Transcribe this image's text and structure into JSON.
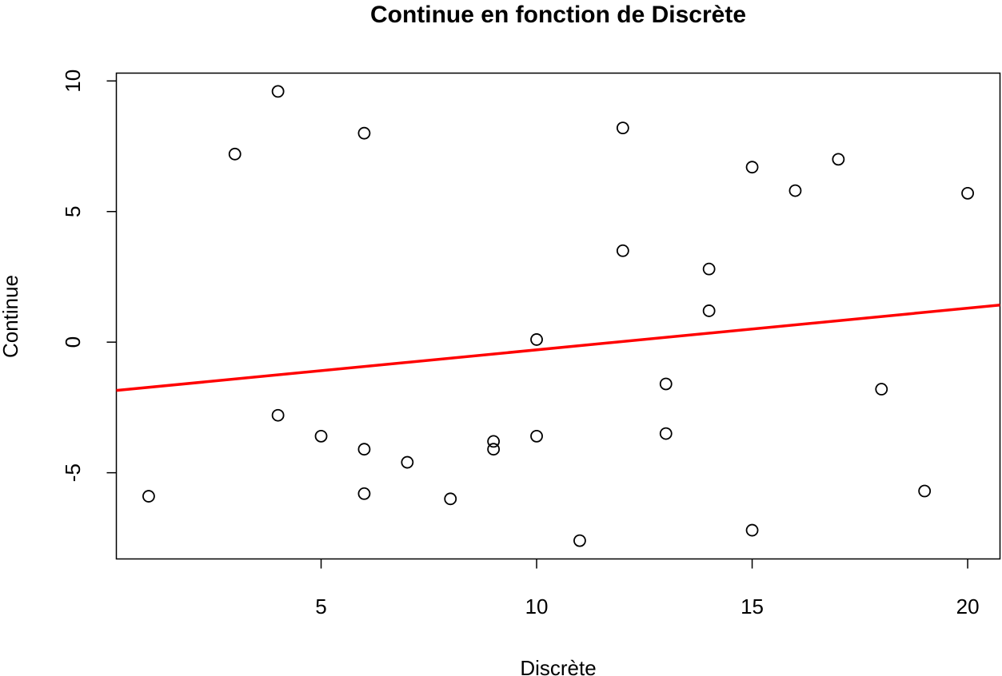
{
  "chart_data": {
    "type": "scatter",
    "title": "Continue en fonction de Discrète",
    "xlabel": "Discrète",
    "ylabel": "Continue",
    "xlim": [
      0.25,
      20.75
    ],
    "ylim": [
      -8.3,
      10.3
    ],
    "xticks": [
      5,
      10,
      15,
      20
    ],
    "yticks": [
      -5,
      0,
      5,
      10
    ],
    "grid": false,
    "colors": {
      "points": "#000000",
      "regression_line": "#ff0000"
    },
    "points": [
      {
        "x": 1,
        "y": -5.9
      },
      {
        "x": 3,
        "y": 7.2
      },
      {
        "x": 4,
        "y": 9.6
      },
      {
        "x": 4,
        "y": -2.8
      },
      {
        "x": 5,
        "y": -3.6
      },
      {
        "x": 6,
        "y": 8.0
      },
      {
        "x": 6,
        "y": -4.1
      },
      {
        "x": 6,
        "y": -5.8
      },
      {
        "x": 7,
        "y": -4.6
      },
      {
        "x": 8,
        "y": -6.0
      },
      {
        "x": 9,
        "y": -3.8
      },
      {
        "x": 9,
        "y": -4.1
      },
      {
        "x": 10,
        "y": 0.1
      },
      {
        "x": 10,
        "y": -3.6
      },
      {
        "x": 11,
        "y": -7.6
      },
      {
        "x": 12,
        "y": 8.2
      },
      {
        "x": 12,
        "y": 3.5
      },
      {
        "x": 13,
        "y": -1.6
      },
      {
        "x": 13,
        "y": -3.5
      },
      {
        "x": 14,
        "y": 2.8
      },
      {
        "x": 14,
        "y": 1.2
      },
      {
        "x": 15,
        "y": 6.7
      },
      {
        "x": 15,
        "y": -7.2
      },
      {
        "x": 16,
        "y": 5.8
      },
      {
        "x": 17,
        "y": 7.0
      },
      {
        "x": 18,
        "y": -1.8
      },
      {
        "x": 19,
        "y": -5.7
      },
      {
        "x": 20,
        "y": 5.7
      }
    ],
    "regression_line": {
      "x": [
        0.25,
        20.75
      ],
      "y": [
        -1.85,
        1.42
      ]
    }
  }
}
